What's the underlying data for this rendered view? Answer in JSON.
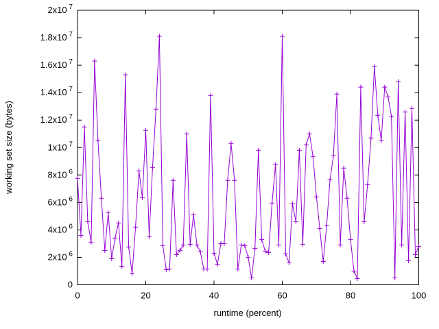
{
  "chart_data": {
    "type": "line",
    "title": "",
    "xlabel": "runtime (percent)",
    "ylabel": "working set size (bytes)",
    "xlim": [
      0,
      100
    ],
    "ylim": [
      0,
      20000000
    ],
    "grid": false,
    "legend_position": "none",
    "line_color": "#9400d3",
    "marker": "plus",
    "x_ticks": [
      {
        "value": 0,
        "label": "0"
      },
      {
        "value": 20,
        "label": "20"
      },
      {
        "value": 40,
        "label": "40"
      },
      {
        "value": 60,
        "label": "60"
      },
      {
        "value": 80,
        "label": "80"
      },
      {
        "value": 100,
        "label": "100"
      }
    ],
    "y_ticks": [
      {
        "value": 0,
        "base": "0",
        "exp": ""
      },
      {
        "value": 2000000,
        "base": "2x10",
        "exp": "6"
      },
      {
        "value": 4000000,
        "base": "4x10",
        "exp": "6"
      },
      {
        "value": 6000000,
        "base": "6x10",
        "exp": "6"
      },
      {
        "value": 8000000,
        "base": "8x10",
        "exp": "6"
      },
      {
        "value": 10000000,
        "base": "1x10",
        "exp": "7"
      },
      {
        "value": 12000000,
        "base": "1.2x10",
        "exp": "7"
      },
      {
        "value": 14000000,
        "base": "1.4x10",
        "exp": "7"
      },
      {
        "value": 16000000,
        "base": "1.6x10",
        "exp": "7"
      },
      {
        "value": 18000000,
        "base": "1.8x10",
        "exp": "7"
      },
      {
        "value": 20000000,
        "base": "2x10",
        "exp": "7"
      }
    ],
    "points": [
      [
        0,
        7750000
      ],
      [
        1,
        3600000
      ],
      [
        2,
        11500000
      ],
      [
        3,
        4600000
      ],
      [
        4,
        3100000
      ],
      [
        5,
        16300000
      ],
      [
        6,
        10500000
      ],
      [
        7,
        6300000
      ],
      [
        8,
        2500000
      ],
      [
        9,
        5250000
      ],
      [
        10,
        1900000
      ],
      [
        11,
        3400000
      ],
      [
        12,
        4500000
      ],
      [
        13,
        1350000
      ],
      [
        14,
        15300000
      ],
      [
        15,
        2750000
      ],
      [
        16,
        800000
      ],
      [
        17,
        4200000
      ],
      [
        18,
        8300000
      ],
      [
        19,
        6350000
      ],
      [
        20,
        11250000
      ],
      [
        21,
        3500000
      ],
      [
        22,
        8550000
      ],
      [
        23,
        12800000
      ],
      [
        24,
        18100000
      ],
      [
        25,
        2850000
      ],
      [
        26,
        1100000
      ],
      [
        27,
        1150000
      ],
      [
        28,
        7600000
      ],
      [
        29,
        2200000
      ],
      [
        30,
        2500000
      ],
      [
        31,
        2900000
      ],
      [
        32,
        11000000
      ],
      [
        33,
        2950000
      ],
      [
        34,
        5100000
      ],
      [
        35,
        2900000
      ],
      [
        36,
        2400000
      ],
      [
        37,
        1150000
      ],
      [
        38,
        1150000
      ],
      [
        39,
        13800000
      ],
      [
        40,
        2300000
      ],
      [
        41,
        1500000
      ],
      [
        42,
        3000000
      ],
      [
        43,
        3000000
      ],
      [
        44,
        7600000
      ],
      [
        45,
        10300000
      ],
      [
        46,
        7600000
      ],
      [
        47,
        1150000
      ],
      [
        48,
        2900000
      ],
      [
        49,
        2850000
      ],
      [
        50,
        2000000
      ],
      [
        51,
        500000
      ],
      [
        52,
        2650000
      ],
      [
        53,
        9800000
      ],
      [
        54,
        3300000
      ],
      [
        55,
        2450000
      ],
      [
        56,
        2350000
      ],
      [
        57,
        5950000
      ],
      [
        58,
        8750000
      ],
      [
        59,
        2900000
      ],
      [
        60,
        18100000
      ],
      [
        61,
        2250000
      ],
      [
        62,
        1600000
      ],
      [
        63,
        5900000
      ],
      [
        64,
        4600000
      ],
      [
        65,
        9800000
      ],
      [
        66,
        2950000
      ],
      [
        67,
        10200000
      ],
      [
        68,
        11000000
      ],
      [
        69,
        9350000
      ],
      [
        70,
        6400000
      ],
      [
        71,
        4100000
      ],
      [
        72,
        1700000
      ],
      [
        73,
        4300000
      ],
      [
        74,
        7650000
      ],
      [
        75,
        9400000
      ],
      [
        76,
        13900000
      ],
      [
        77,
        2900000
      ],
      [
        78,
        8500000
      ],
      [
        79,
        6300000
      ],
      [
        80,
        3300000
      ],
      [
        81,
        1000000
      ],
      [
        82,
        450000
      ],
      [
        83,
        14400000
      ],
      [
        84,
        4600000
      ],
      [
        85,
        7300000
      ],
      [
        86,
        10700000
      ],
      [
        87,
        15900000
      ],
      [
        88,
        12350000
      ],
      [
        89,
        10500000
      ],
      [
        90,
        14400000
      ],
      [
        91,
        13700000
      ],
      [
        92,
        12250000
      ],
      [
        93,
        500000
      ],
      [
        94,
        14800000
      ],
      [
        95,
        2900000
      ],
      [
        96,
        12600000
      ],
      [
        97,
        1750000
      ],
      [
        98,
        12850000
      ],
      [
        99,
        2200000
      ],
      [
        100,
        2800000
      ]
    ]
  }
}
